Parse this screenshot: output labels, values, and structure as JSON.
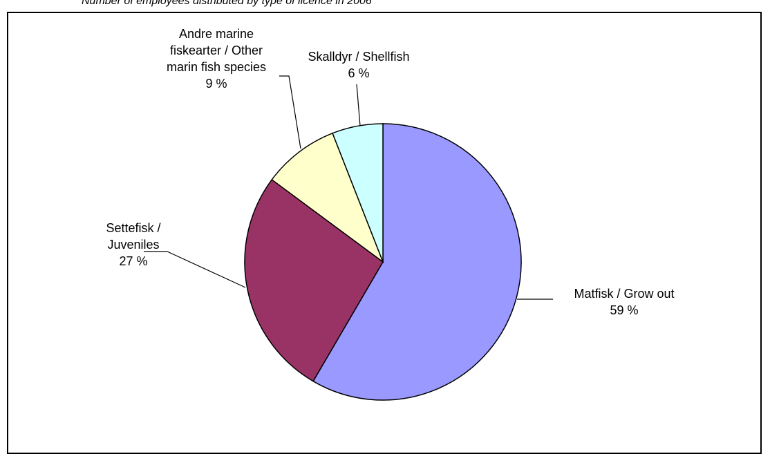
{
  "caption": "Number of employees distributed by type of licence in 2006",
  "chart_data": {
    "type": "pie",
    "title": "",
    "slices": [
      {
        "label_lines": [
          "Matfisk / Grow out",
          "59 %"
        ],
        "value": 59,
        "color": "#9999FF"
      },
      {
        "label_lines": [
          "Settefisk /",
          "Juveniles",
          "27 %"
        ],
        "value": 27,
        "color": "#993366"
      },
      {
        "label_lines": [
          "Andre marine",
          "fiskearter / Other",
          "marin fish species",
          "9 %"
        ],
        "value": 9,
        "color": "#FFFFCC"
      },
      {
        "label_lines": [
          "Skalldyr / Shellfish",
          "6 %"
        ],
        "value": 6,
        "color": "#CCFFFF"
      }
    ],
    "start": "12 o'clock",
    "direction": "clockwise",
    "legend": "none"
  }
}
